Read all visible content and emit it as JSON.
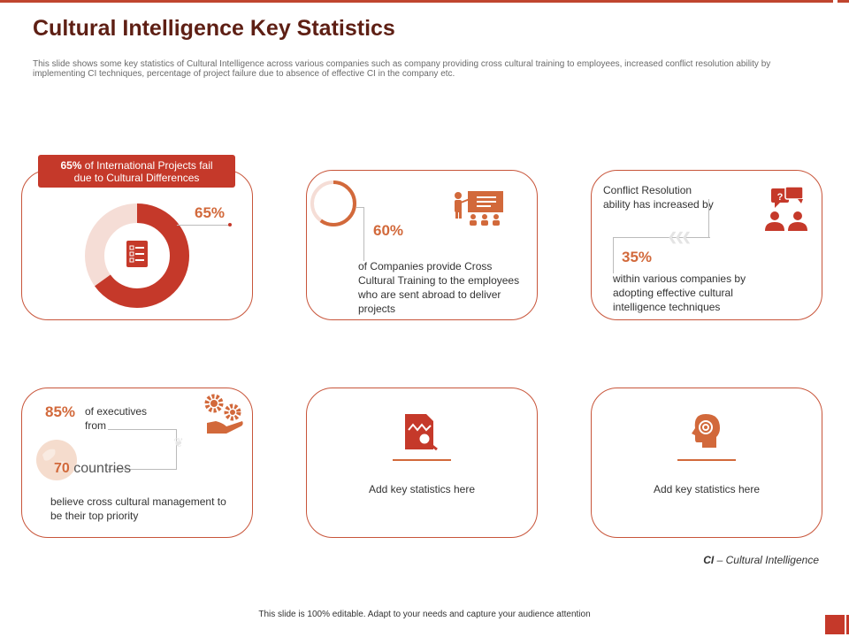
{
  "slide": {
    "title": "Cultural Intelligence Key Statistics",
    "description": "This slide shows some key statistics of Cultural Intelligence across various companies such as company providing cross cultural training to employees, increased conflict resolution ability by implementing  CI techniques, percentage of project failure due to absence of effective CI in the company etc."
  },
  "card1": {
    "banner_pct": "65%",
    "banner_line1": " of International Projects fail",
    "banner_line2": "due to Cultural Differences",
    "donut_label": "65%",
    "donut_value": 65,
    "icon": "checklist-icon"
  },
  "card2": {
    "pct": "60%",
    "progress_value": 60,
    "text": "of Companies provide  Cross Cultural Training  to the employees who are sent abroad to deliver projects",
    "icon": "presentation-icon"
  },
  "card3": {
    "lead": "Conflict Resolution ability has increased by",
    "pct": "35%",
    "text": "within various companies by adopting effective  cultural intelligence techniques",
    "icon": "discussion-icon"
  },
  "card4": {
    "pct": "85%",
    "lead": "of executives from",
    "countries_num": "70",
    "countries_word": " countries",
    "text": "believe  cross cultural management to be their top priority",
    "icon": "gears-hand-icon"
  },
  "card5": {
    "text": "Add key statistics here",
    "icon": "analytics-report-icon"
  },
  "card6": {
    "text": "Add key statistics here",
    "icon": "mind-head-icon"
  },
  "notes": {
    "ci_abbr": "CI",
    "ci_rest": " – Cultural Intelligence",
    "footer": "This slide is 100% editable.  Adapt to your needs and capture your audience attention"
  },
  "colors": {
    "accent_red": "#c5392a",
    "accent_orange": "#d2693b",
    "title": "#5e1f14",
    "light_pink": "#f5ddd6"
  }
}
